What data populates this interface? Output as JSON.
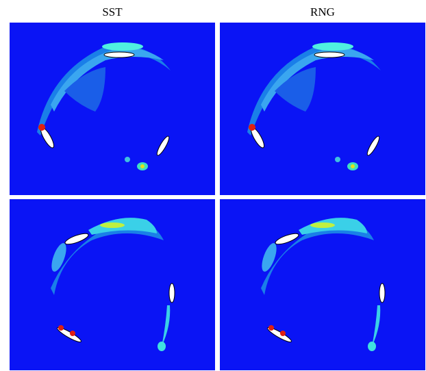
{
  "columns": [
    "SST",
    "RNG"
  ]
}
